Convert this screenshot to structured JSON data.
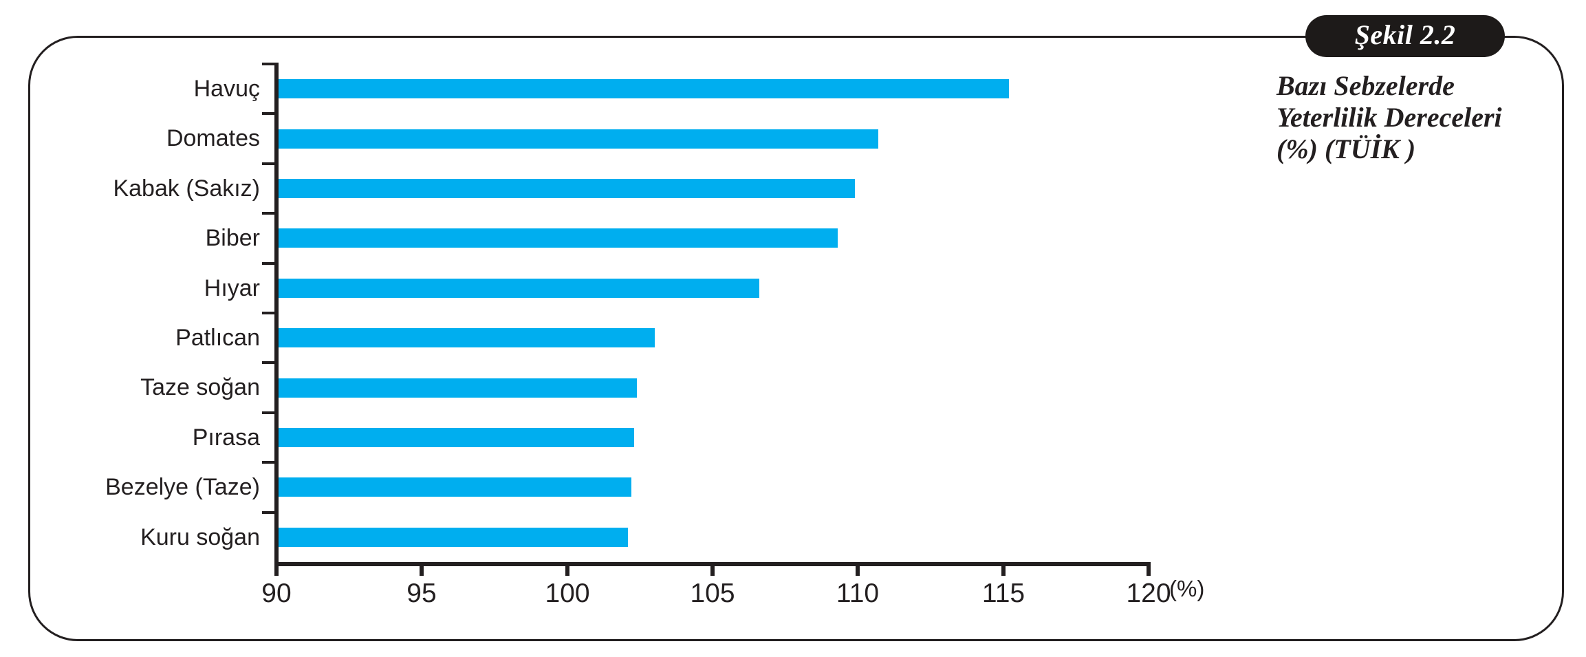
{
  "figure": {
    "badge_label": "Şekil 2.2",
    "caption_lines": [
      "Bazı Sebzelerde",
      "Yeterlilik Dereceleri",
      "(%) (TÜİK )"
    ]
  },
  "chart_data": {
    "type": "bar",
    "orientation": "horizontal",
    "title": "Bazı Sebzelerde Yeterlilik Dereceleri (%) (TÜİK)",
    "categories": [
      "Havuç",
      "Domates",
      "Kabak (Sakız)",
      "Biber",
      "Hıyar",
      "Patlıcan",
      "Taze soğan",
      "Pırasa",
      "Bezelye (Taze)",
      "Kuru soğan"
    ],
    "values": [
      115.2,
      110.7,
      109.9,
      109.3,
      106.6,
      103.0,
      102.4,
      102.3,
      102.2,
      102.1
    ],
    "xlabel": "(%)",
    "ylabel": "",
    "x_ticks": [
      90,
      95,
      100,
      105,
      110,
      115,
      120
    ],
    "xlim": [
      90,
      120
    ],
    "grid": false,
    "legend": "none",
    "bar_color": "#00AEEF",
    "axis_color": "#231F20",
    "text_color": "#231F20"
  }
}
